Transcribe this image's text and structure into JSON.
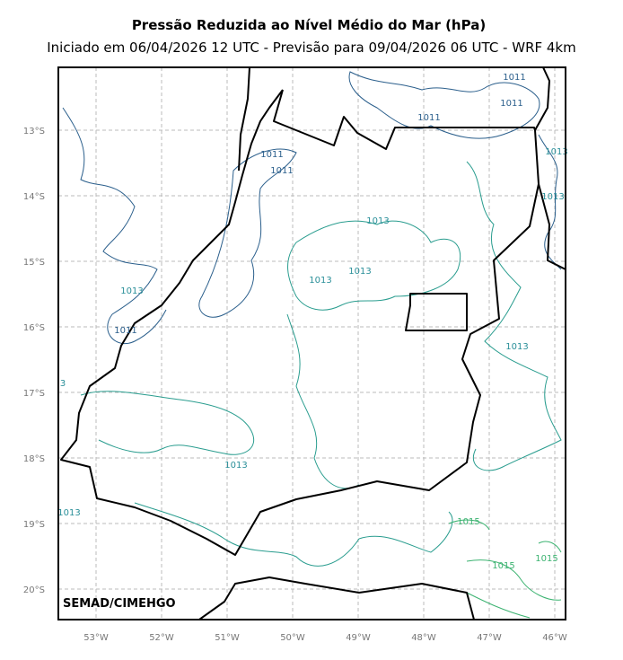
{
  "map": {
    "title": "Pressão Reduzida ao Nível Médio do Mar (hPa)",
    "subtitle": "Iniciado em 06/04/2026 12 UTC - Previsão para 09/04/2026 06 UTC - WRF 4km",
    "x_ticks": [
      "53°W",
      "52°W",
      "51°W",
      "50°W",
      "49°W",
      "48°W",
      "47°W",
      "46°W"
    ],
    "y_ticks": [
      "13°S",
      "14°S",
      "15°S",
      "16°S",
      "17°S",
      "18°S",
      "19°S",
      "20°S"
    ],
    "contour_labels": [
      "1011",
      "1011",
      "1011",
      "1011",
      "1011",
      "1011",
      "1013",
      "1013",
      "1013",
      "1013",
      "1013",
      "1013",
      "1013",
      "1013",
      "1013",
      "3",
      "1015",
      "1015",
      "1015"
    ],
    "credit": "SEMAD/CIMEHGO"
  }
}
